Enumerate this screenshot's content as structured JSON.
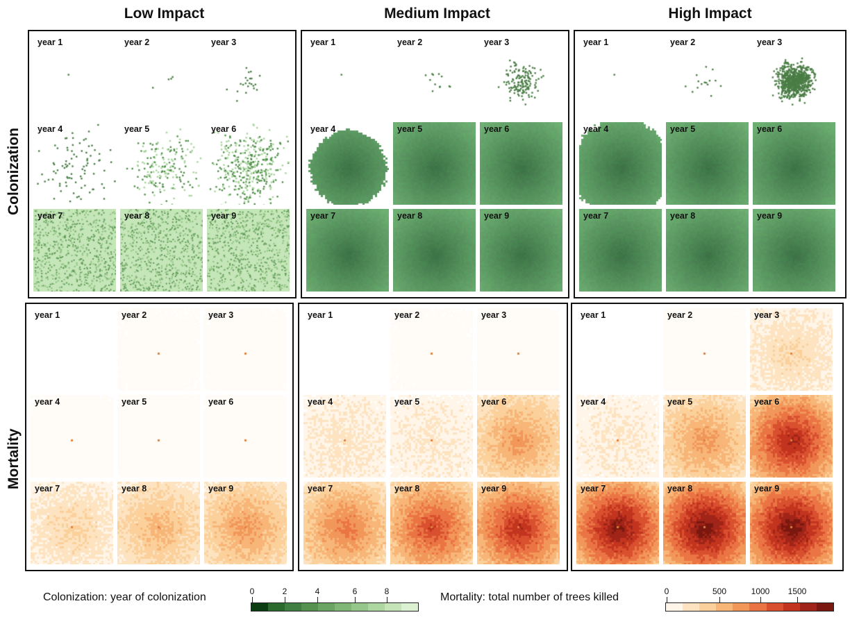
{
  "columns": [
    {
      "title": "Low Impact"
    },
    {
      "title": "Medium Impact"
    },
    {
      "title": "High Impact"
    }
  ],
  "rows": [
    {
      "title": "Colonization"
    },
    {
      "title": "Mortality"
    }
  ],
  "panels": [
    {
      "row": "Colonization",
      "col": "Low Impact",
      "years": [
        "year 1",
        "year 2",
        "year 3",
        "year 4",
        "year 5",
        "year 6",
        "year 7",
        "year 8",
        "year 9"
      ]
    },
    {
      "row": "Colonization",
      "col": "Medium Impact",
      "years": [
        "year 1",
        "year 2",
        "year 3",
        "year 4",
        "year 5",
        "year 6",
        "year 7",
        "year 8",
        "year 9"
      ]
    },
    {
      "row": "Colonization",
      "col": "High Impact",
      "years": [
        "year 1",
        "year 2",
        "year 3",
        "year 4",
        "year 5",
        "year 6",
        "year 7",
        "year 8",
        "year 9"
      ]
    },
    {
      "row": "Mortality",
      "col": "Low Impact",
      "years": [
        "year 1",
        "year 2",
        "year 3",
        "year 4",
        "year 5",
        "year 6",
        "year 7",
        "year 8",
        "year 9"
      ]
    },
    {
      "row": "Mortality",
      "col": "Medium Impact",
      "years": [
        "year 1",
        "year 2",
        "year 3",
        "year 4",
        "year 5",
        "year 6",
        "year 7",
        "year 8",
        "year 9"
      ]
    },
    {
      "row": "Mortality",
      "col": "High Impact",
      "years": [
        "year 1",
        "year 2",
        "year 3",
        "year 4",
        "year 5",
        "year 6",
        "year 7",
        "year 8",
        "year 9"
      ]
    }
  ],
  "legend": {
    "colonization": {
      "title": "Colonization: year of colonization",
      "ticks": [
        "0",
        "2",
        "4",
        "6",
        "8"
      ],
      "colors": [
        "#0b3d12",
        "#2a6a2f",
        "#3f7f44",
        "#55924f",
        "#6aa563",
        "#80b676",
        "#97c68b",
        "#aed6a0",
        "#c5e4b8",
        "#dcf0d2"
      ]
    },
    "mortality": {
      "title": "Mortality: total number of trees killed",
      "ticks": [
        "0",
        "500",
        "1000",
        "1500"
      ],
      "colors": [
        "#fff5e8",
        "#fde3c0",
        "#fbd09a",
        "#f7b577",
        "#f2975a",
        "#ea7444",
        "#d9502f",
        "#c3341f",
        "#a02417",
        "#7a1810"
      ]
    }
  }
}
